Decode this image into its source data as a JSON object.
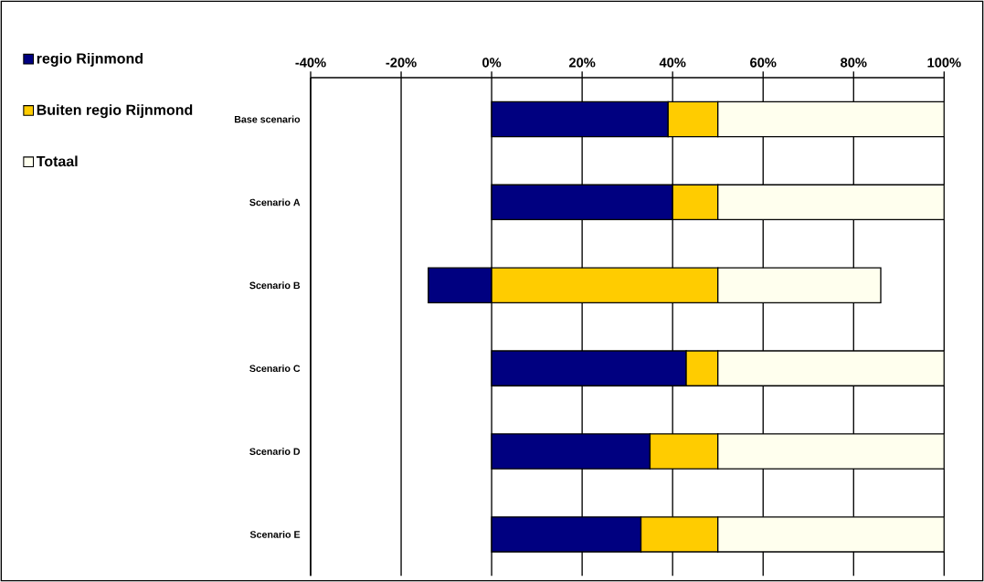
{
  "chart_data": {
    "type": "bar",
    "orientation": "horizontal",
    "stacked": true,
    "categories": [
      "Base scenario",
      "Scenario A",
      "Scenario B",
      "Scenario C",
      "Scenario D",
      "Scenario E"
    ],
    "series": [
      {
        "name": "regio Rijnmond",
        "color": "#000080",
        "values": [
          39,
          40,
          -14,
          43,
          35,
          33
        ]
      },
      {
        "name": "Buiten regio Rijnmond",
        "color": "#ffcc00",
        "values": [
          11,
          10,
          50,
          7,
          15,
          17
        ]
      },
      {
        "name": "Totaal",
        "color": "#ffffee",
        "values": [
          50,
          50,
          36,
          50,
          50,
          50
        ]
      }
    ],
    "xlim": [
      -40,
      100
    ],
    "xticks": [
      {
        "value": -40,
        "label": "-40%"
      },
      {
        "value": -20,
        "label": "-20%"
      },
      {
        "value": 0,
        "label": "0%"
      },
      {
        "value": 20,
        "label": "20%"
      },
      {
        "value": 40,
        "label": "40%"
      },
      {
        "value": 60,
        "label": "60%"
      },
      {
        "value": 80,
        "label": "80%"
      },
      {
        "value": 100,
        "label": "100%"
      }
    ],
    "grid": "x",
    "legend": "top left"
  }
}
